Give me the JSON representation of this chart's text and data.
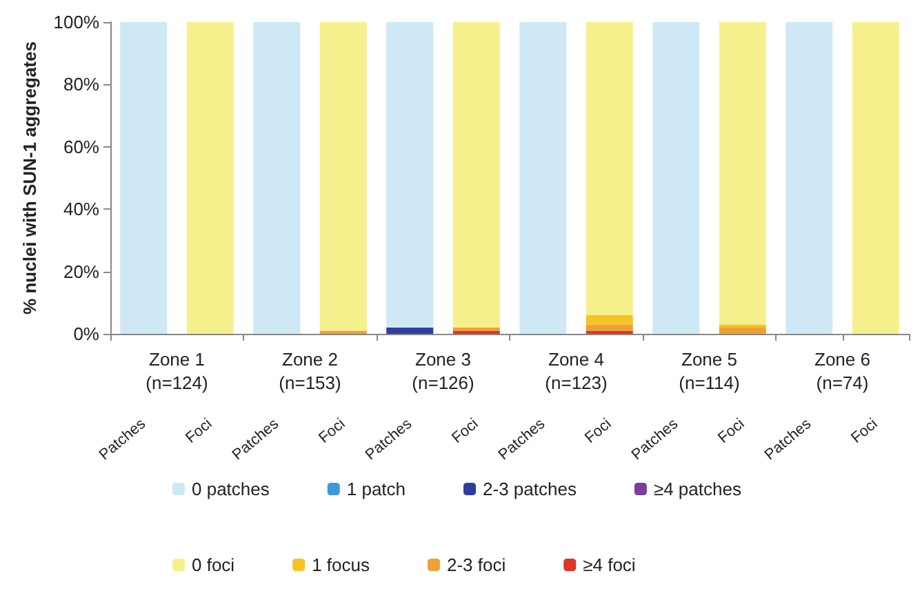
{
  "chart_data": {
    "type": "bar",
    "stacked": true,
    "ylabel": "% nuclei with SUN-1 aggregates",
    "categories": [
      "Patches",
      "Foci",
      "Patches",
      "Foci",
      "Patches",
      "Foci",
      "Patches",
      "Foci",
      "Patches",
      "Foci",
      "Patches",
      "Foci"
    ],
    "annotations": [
      "Zone 1\n(n=124)",
      "Zone 2\n(n=153)",
      "Zone 3\n(n=126)",
      "Zone 4\n(n=123)",
      "Zone 5\n(n=114)",
      "Zone 6\n(n=74)"
    ],
    "series": [
      {
        "name": "≥4 foci",
        "color": "#e03424",
        "values": [
          null,
          0,
          null,
          0,
          null,
          1,
          null,
          1,
          null,
          0,
          null,
          0
        ]
      },
      {
        "name": "2-3 foci",
        "color": "#f0a032",
        "values": [
          null,
          0,
          null,
          1,
          null,
          1,
          null,
          2,
          null,
          2,
          null,
          0
        ]
      },
      {
        "name": "1 focus",
        "color": "#f4c424",
        "values": [
          null,
          0,
          null,
          0,
          null,
          0,
          null,
          3,
          null,
          1,
          null,
          0
        ]
      },
      {
        "name": "0 foci",
        "color": "#f6f08c",
        "values": [
          null,
          100,
          null,
          99,
          null,
          98,
          null,
          94,
          null,
          97,
          null,
          100
        ]
      },
      {
        "name": "≥4 patches",
        "color": "#7a3ea0",
        "values": [
          0,
          null,
          0,
          null,
          0,
          null,
          0,
          null,
          0,
          null,
          0,
          null
        ]
      },
      {
        "name": "2-3 patches",
        "color": "#2e3e9e",
        "values": [
          0,
          null,
          0,
          null,
          2,
          null,
          0,
          null,
          0,
          null,
          0,
          null
        ]
      },
      {
        "name": "1 patch",
        "color": "#3a9ad8",
        "values": [
          0,
          null,
          0,
          null,
          0,
          null,
          0,
          null,
          0,
          null,
          0,
          null
        ]
      },
      {
        "name": "0 patches",
        "color": "#cfe8f6",
        "values": [
          100,
          null,
          100,
          null,
          98,
          null,
          100,
          null,
          100,
          null,
          100,
          null
        ]
      }
    ],
    "ylim": [
      0,
      100
    ],
    "yticks": [
      {
        "value": 0,
        "label": "0%"
      },
      {
        "value": 20,
        "label": "20%"
      },
      {
        "value": 40,
        "label": "40%"
      },
      {
        "value": 60,
        "label": "60%"
      },
      {
        "value": 80,
        "label": "80%"
      },
      {
        "value": 100,
        "label": "100%"
      }
    ],
    "legend": "bottom"
  }
}
